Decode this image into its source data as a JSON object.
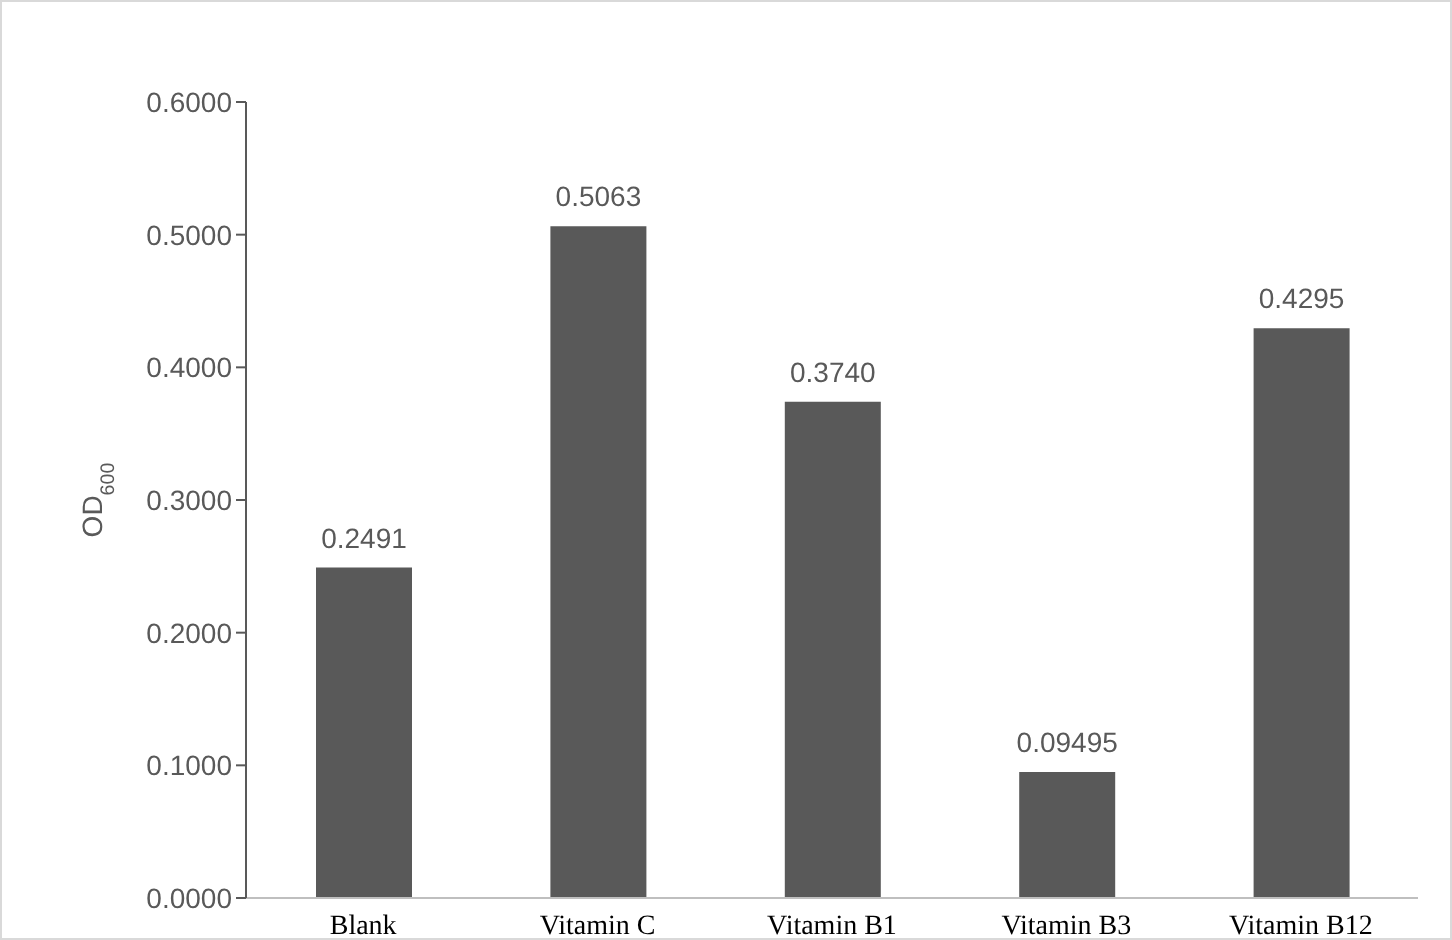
{
  "chart_data": {
    "type": "bar",
    "ylabel": "OD$_{600}$",
    "categories": [
      "Blank",
      "Vitamin C",
      "Vitamin B1",
      "Vitamin B3",
      "Vitamin B12"
    ],
    "values": [
      0.2491,
      0.5063,
      0.374,
      0.09495,
      0.4295
    ],
    "value_labels": [
      "0.2491",
      "0.5063",
      "0.3740",
      "0.09495",
      "0.4295"
    ],
    "color": "#595959",
    "ylim": [
      0,
      0.6
    ],
    "yticks": [
      {
        "value": 0,
        "label": "0.0000"
      },
      {
        "value": 0.1,
        "label": "0.1000"
      },
      {
        "value": 0.2,
        "label": "0.2000"
      },
      {
        "value": 0.3,
        "label": "0.3000"
      },
      {
        "value": 0.4,
        "label": "0.4000"
      },
      {
        "value": 0.5,
        "label": "0.5000"
      },
      {
        "value": 0.6,
        "label": "0.6000"
      }
    ],
    "grid": false
  }
}
